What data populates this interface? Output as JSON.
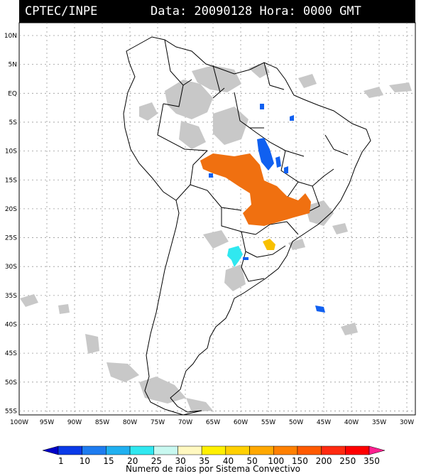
{
  "header": {
    "source": "CPTEC/INPE",
    "datetime": "Data: 20090128 Hora: 0000 GMT"
  },
  "map": {
    "lat_labels": [
      "10N",
      "5N",
      "EQ",
      "5S",
      "10S",
      "15S",
      "20S",
      "25S",
      "30S",
      "35S",
      "40S",
      "45S",
      "50S",
      "55S"
    ],
    "lon_labels": [
      "100W",
      "95W",
      "90W",
      "85W",
      "80W",
      "75W",
      "70W",
      "65W",
      "60W",
      "55W",
      "50W",
      "45W",
      "40W",
      "35W",
      "30W"
    ],
    "lat_values": [
      10,
      5,
      0,
      -5,
      -10,
      -15,
      -20,
      -25,
      -30,
      -35,
      -40,
      -45,
      -50,
      -55
    ],
    "lon_values": [
      -100,
      -95,
      -90,
      -85,
      -80,
      -75,
      -70,
      -65,
      -60,
      -55,
      -50,
      -45,
      -40,
      -35,
      -30
    ],
    "colors": {
      "land_outline": "#000000",
      "cloud_gray": "#c8c8c8",
      "orange_cells": "#f07010",
      "blue_cells": "#1060f0",
      "cyan_cell": "#30e8f0",
      "yellow_cell": "#f8c000"
    }
  },
  "colorbar": {
    "title": "Numero de raios por Sistema Convectivo",
    "labels": [
      "1",
      "10",
      "15",
      "20",
      "25",
      "30",
      "35",
      "40",
      "50",
      "100",
      "150",
      "200",
      "250",
      "350"
    ],
    "colors": [
      "#0000c8",
      "#0a3ae8",
      "#1e7cf0",
      "#20b0f0",
      "#30e8f0",
      "#c8f8f0",
      "#fff8c0",
      "#fff000",
      "#ffd000",
      "#ffa800",
      "#ff8000",
      "#ff5a00",
      "#ff2a10",
      "#ff0000",
      "#ff2090"
    ]
  }
}
